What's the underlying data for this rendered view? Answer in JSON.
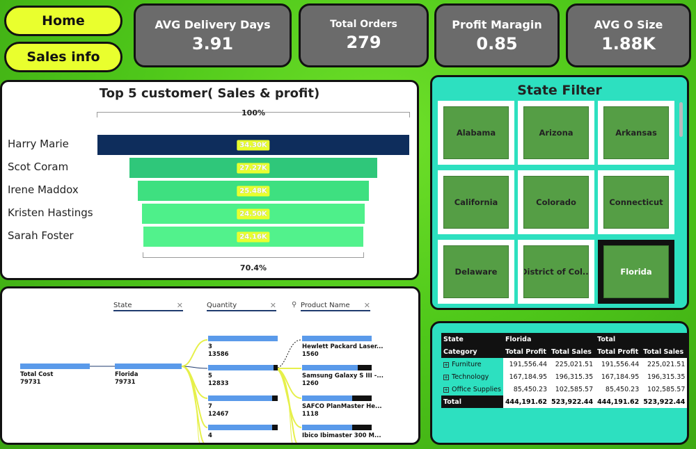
{
  "nav": {
    "home_label": "Home",
    "sales_label": "Sales info"
  },
  "kpis": [
    {
      "label": "AVG Delivery Days",
      "value": "3.91"
    },
    {
      "label": "Total Orders",
      "value": "279"
    },
    {
      "label": "Profit Maragin",
      "value": "0.85"
    },
    {
      "label": "AVG O Size",
      "value": "1.88K"
    }
  ],
  "funnel": {
    "title": "Top 5 customer( Sales & profit)",
    "top_pct": "100%",
    "bottom_pct": "70.4%",
    "customers": [
      {
        "name": "Harry Marie",
        "label": "34.30K",
        "value": 34.3,
        "color": "#0e2d5c"
      },
      {
        "name": "Scot Coram",
        "label": "27.27K",
        "value": 27.27,
        "color": "#2fc77a"
      },
      {
        "name": "Irene Maddox",
        "label": "25.48K",
        "value": 25.48,
        "color": "#3ee080"
      },
      {
        "name": "Kristen Hastings",
        "label": "24.50K",
        "value": 24.5,
        "color": "#4ef08a"
      },
      {
        "name": "Sarah Foster",
        "label": "24.16K",
        "value": 24.16,
        "color": "#52f28c"
      }
    ]
  },
  "state_filter": {
    "title": "State Filter",
    "states": [
      "Alabama",
      "Arizona",
      "Arkansas",
      "California",
      "Colorado",
      "Connecticut",
      "Delaware",
      "District of Col...",
      "Florida"
    ],
    "selected": "Florida"
  },
  "matrix": {
    "state_label": "State",
    "state_value": "Florida",
    "total_label": "Total",
    "category_label": "Category",
    "col_profit": "Total Profit",
    "col_sales": "Total Sales",
    "rows": [
      {
        "category": "Furniture",
        "fl_profit": "191,556.44",
        "fl_sales": "225,021.51",
        "t_profit": "191,556.44",
        "t_sales": "225,021.51"
      },
      {
        "category": "Technology",
        "fl_profit": "167,184.95",
        "fl_sales": "196,315.35",
        "t_profit": "167,184.95",
        "t_sales": "196,315.35"
      },
      {
        "category": "Office Supplies",
        "fl_profit": "85,450.23",
        "fl_sales": "102,585.57",
        "t_profit": "85,450.23",
        "t_sales": "102,585.57"
      }
    ],
    "total": {
      "category": "Total",
      "fl_profit": "444,191.62",
      "fl_sales": "523,922.44",
      "t_profit": "444,191.62",
      "t_sales": "523,922.44"
    }
  },
  "tree": {
    "headers": {
      "state": "State",
      "quantity": "Quantity",
      "product": "Product Name"
    },
    "root": {
      "label": "Total Cost",
      "value": "79731"
    },
    "state_node": {
      "label": "Florida",
      "value": "79731"
    },
    "quantities": [
      {
        "label": "3",
        "value": "13586"
      },
      {
        "label": "5",
        "value": "12833"
      },
      {
        "label": "7",
        "value": "12467"
      },
      {
        "label": "4",
        "value": ""
      }
    ],
    "products": [
      {
        "label": "Hewlett Packard Laser...",
        "value": "1560"
      },
      {
        "label": "Samsung Galaxy S III -...",
        "value": "1260"
      },
      {
        "label": "SAFCO PlanMaster He...",
        "value": "1118"
      },
      {
        "label": "Ibico Ibimaster 300 M...",
        "value": ""
      }
    ]
  }
}
